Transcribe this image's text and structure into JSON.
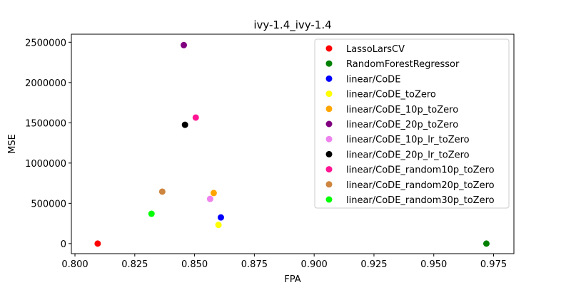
{
  "chart_data": {
    "type": "scatter",
    "title": "ivy-1.4_ivy-1.4",
    "xlabel": "FPA",
    "ylabel": "MSE",
    "xlim": [
      0.7985,
      0.9835
    ],
    "ylim": [
      -125000,
      2600000
    ],
    "xticks": [
      0.8,
      0.825,
      0.85,
      0.875,
      0.9,
      0.925,
      0.95,
      0.975
    ],
    "xtick_labels": [
      "0.800",
      "0.825",
      "0.850",
      "0.875",
      "0.900",
      "0.925",
      "0.950",
      "0.975"
    ],
    "yticks": [
      0,
      500000,
      1000000,
      1500000,
      2000000,
      2500000
    ],
    "ytick_labels": [
      "0",
      "500000",
      "1000000",
      "1500000",
      "2000000",
      "2500000"
    ],
    "grid": false,
    "legend_position": "top-right",
    "series": [
      {
        "name": "LassoLarsCV",
        "color": "#ff0000",
        "x": 0.8095,
        "y": 0
      },
      {
        "name": "RandomForestRegressor",
        "color": "#008000",
        "x": 0.972,
        "y": 0
      },
      {
        "name": "linear/CoDE",
        "color": "#0000ff",
        "x": 0.861,
        "y": 325000
      },
      {
        "name": "linear/CoDE_toZero",
        "color": "#ffff00",
        "x": 0.86,
        "y": 232000
      },
      {
        "name": "linear/CoDE_10p_toZero",
        "color": "#ffa500",
        "x": 0.858,
        "y": 628000
      },
      {
        "name": "linear/CoDE_20p_toZero",
        "color": "#800080",
        "x": 0.8455,
        "y": 2465000
      },
      {
        "name": "linear/CoDE_10p_lr_toZero",
        "color": "#ee82ee",
        "x": 0.8565,
        "y": 555000
      },
      {
        "name": "linear/CoDE_20p_lr_toZero",
        "color": "#000000",
        "x": 0.846,
        "y": 1475000
      },
      {
        "name": "linear/CoDE_random10p_toZero",
        "color": "#ff1493",
        "x": 0.8505,
        "y": 1565000
      },
      {
        "name": "linear/CoDE_random20p_toZero",
        "color": "#cd853f",
        "x": 0.8365,
        "y": 645000
      },
      {
        "name": "linear/CoDE_random30p_toZero",
        "color": "#00ff00",
        "x": 0.832,
        "y": 370000
      }
    ]
  }
}
